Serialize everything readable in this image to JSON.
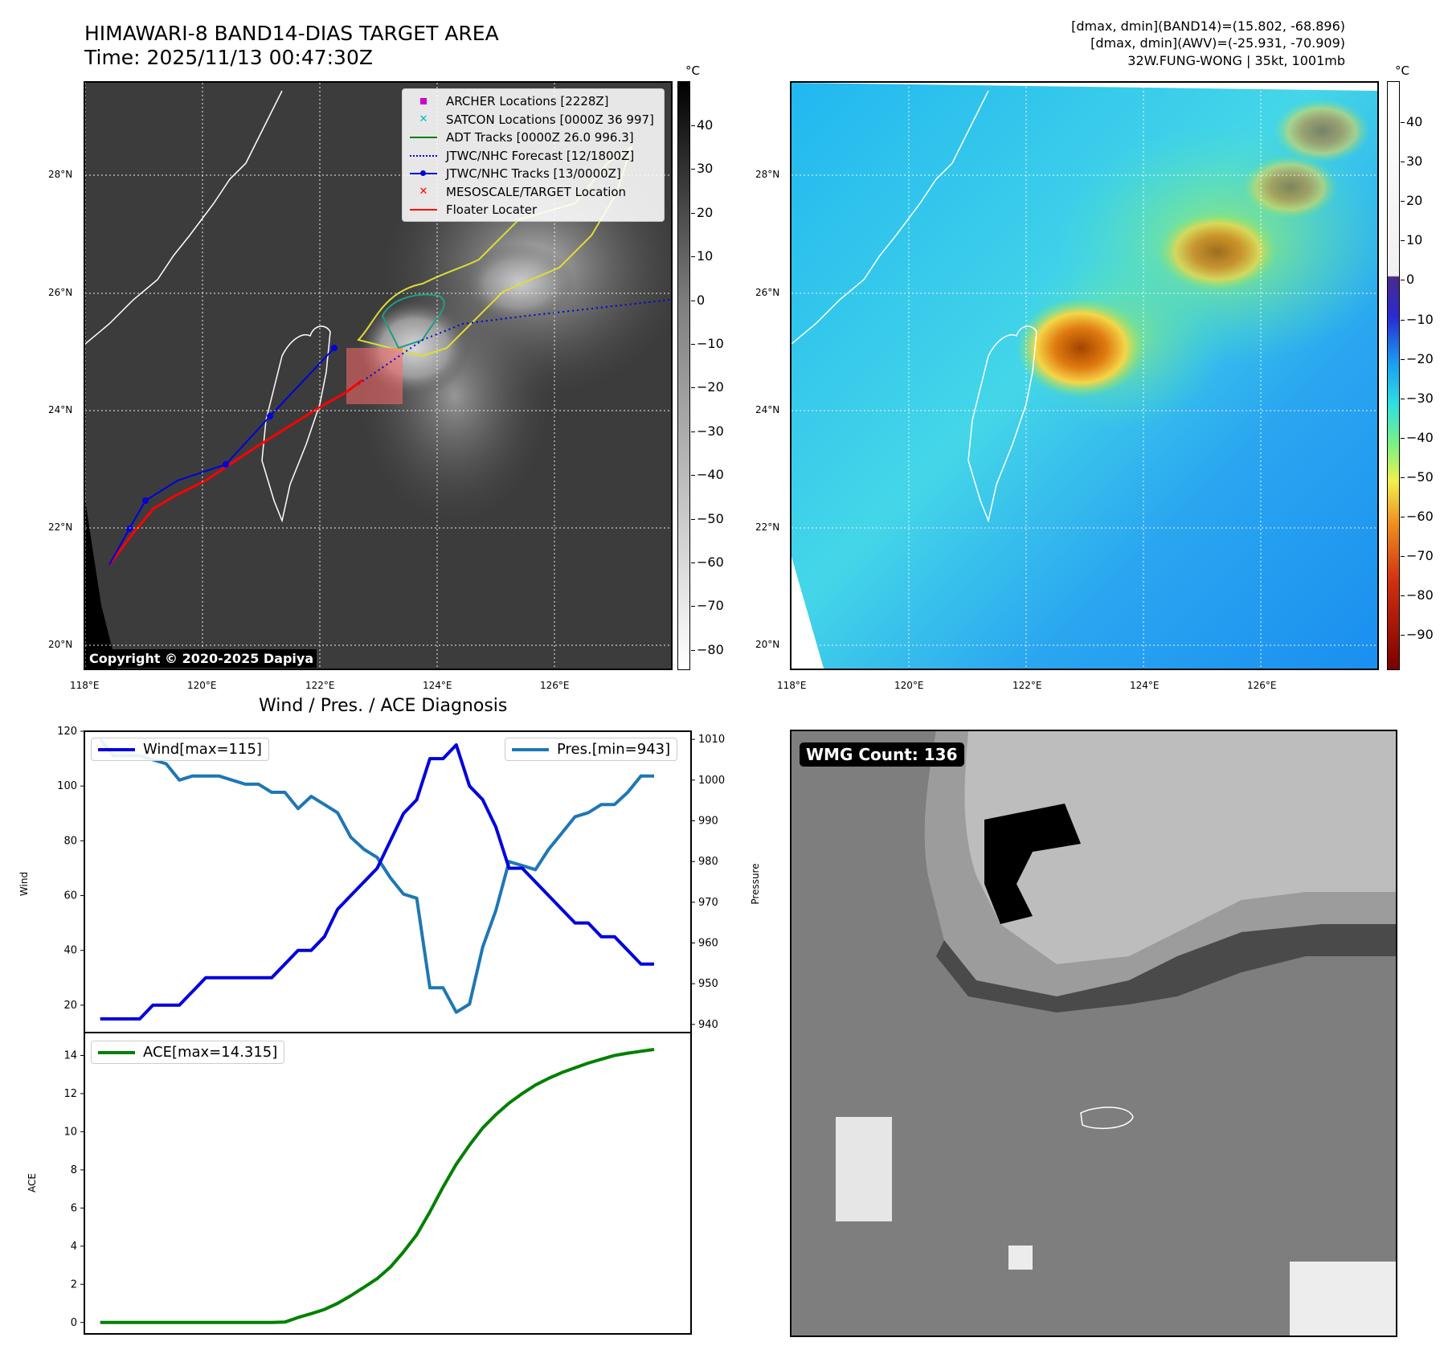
{
  "header": {
    "title_line1": "HIMAWARI-8 BAND14-DIAS TARGET AREA",
    "title_line2": "Time: 2025/11/13 00:47:30Z",
    "info_line1": "[dmax, dmin](BAND14)=(15.802, -68.896)",
    "info_line2": "[dmax, dmin](AWV)=(-25.931, -70.909)",
    "info_line3": "32W.FUNG-WONG | 35kt, 1001mb"
  },
  "map_axes": {
    "lat_labels": [
      "28°N",
      "26°N",
      "24°N",
      "22°N",
      "20°N"
    ],
    "lon_labels": [
      "118°E",
      "120°E",
      "122°E",
      "124°E",
      "126°E"
    ]
  },
  "colorbar_left": {
    "unit": "°C",
    "ticks": [
      "40",
      "30",
      "20",
      "10",
      "0",
      "−10",
      "−20",
      "−30",
      "−40",
      "−50",
      "−60",
      "−70",
      "−80"
    ]
  },
  "colorbar_right": {
    "unit": "°C",
    "ticks": [
      "40",
      "30",
      "20",
      "10",
      "0",
      "−10",
      "−20",
      "−30",
      "−40",
      "−50",
      "−60",
      "−70",
      "−80",
      "−90"
    ]
  },
  "legend": {
    "items": [
      {
        "label": "ARCHER Locations [2228Z]",
        "color": "#cc00cc",
        "symbol": "square"
      },
      {
        "label": "SATCON Locations [0000Z 36 997]",
        "color": "#00bbbb",
        "symbol": "x"
      },
      {
        "label": "ADT Tracks [0000Z 26.0 996.3]",
        "color": "#008000",
        "symbol": "line"
      },
      {
        "label": "JTWC/NHC Forecast [12/1800Z]",
        "color": "#0000dd",
        "symbol": "dotted"
      },
      {
        "label": "JTWC/NHC Tracks [13/0000Z]",
        "color": "#0000dd",
        "symbol": "line-dot"
      },
      {
        "label": "MESOSCALE/TARGET Location",
        "color": "#ff0000",
        "symbol": "x"
      },
      {
        "label": "Floater Locater",
        "color": "#ff0000",
        "symbol": "line"
      }
    ]
  },
  "copyright": "Copyright © 2020-2025 Dapiya",
  "wmg_label": "WMG Count: 136",
  "chart_data": [
    {
      "type": "line",
      "title": "Wind / Pres. / ACE Diagnosis",
      "ylabel": "Wind",
      "ylabel_right": "Pressure",
      "ylim": [
        10,
        120
      ],
      "ylim_right": [
        938,
        1012
      ],
      "yticks": [
        20,
        40,
        60,
        80,
        100,
        120
      ],
      "yticks_right": [
        940,
        950,
        960,
        970,
        980,
        990,
        1000,
        1010
      ],
      "x": [
        0,
        1,
        2,
        3,
        4,
        5,
        6,
        7,
        8,
        9,
        10,
        11,
        12,
        13,
        14,
        15,
        16,
        17,
        18,
        19,
        20,
        21,
        22,
        23,
        24,
        25,
        26,
        27,
        28,
        29,
        30,
        31,
        32,
        33,
        34,
        35,
        36,
        37,
        38,
        39,
        40,
        41,
        42,
        43,
        44
      ],
      "series": [
        {
          "name": "Wind[max=115]",
          "axis": "left",
          "color": "#0000dd",
          "values": [
            15,
            15,
            15,
            15,
            20,
            20,
            20,
            25,
            30,
            30,
            30,
            30,
            30,
            30,
            35,
            40,
            40,
            45,
            55,
            60,
            65,
            70,
            80,
            90,
            95,
            110,
            110,
            115,
            100,
            95,
            85,
            70,
            70,
            65,
            60,
            55,
            50,
            50,
            45,
            45,
            40,
            35,
            35,
            null,
            null
          ]
        },
        {
          "name": "Pres.[min=943]",
          "axis": "right",
          "color": "#1f77b4",
          "values": [
            1010,
            1006,
            1006,
            1006,
            1005,
            1004,
            1000,
            1001,
            1001,
            1001,
            1000,
            999,
            999,
            997,
            997,
            993,
            996,
            994,
            992,
            986,
            983,
            981,
            976,
            972,
            971,
            949,
            949,
            943,
            945,
            959,
            968,
            980,
            979,
            978,
            983,
            987,
            991,
            992,
            994,
            994,
            997,
            1001,
            1001,
            null,
            null
          ]
        }
      ]
    },
    {
      "type": "line",
      "ylabel": "ACE",
      "ylim": [
        -0.6,
        15.2
      ],
      "yticks": [
        0,
        2,
        4,
        6,
        8,
        10,
        12,
        14
      ],
      "x": [
        0,
        1,
        2,
        3,
        4,
        5,
        6,
        7,
        8,
        9,
        10,
        11,
        12,
        13,
        14,
        15,
        16,
        17,
        18,
        19,
        20,
        21,
        22,
        23,
        24,
        25,
        26,
        27,
        28,
        29,
        30,
        31,
        32,
        33,
        34,
        35,
        36,
        37,
        38,
        39,
        40,
        41,
        42,
        43,
        44
      ],
      "series": [
        {
          "name": "ACE[max=14.315]",
          "color": "#008000",
          "values": [
            0,
            0,
            0,
            0,
            0,
            0,
            0,
            0,
            0,
            0,
            0,
            0,
            0,
            0,
            0.02,
            0.26,
            0.46,
            0.68,
            1.0,
            1.4,
            1.85,
            2.3,
            2.9,
            3.7,
            4.6,
            5.8,
            7.1,
            8.3,
            9.3,
            10.2,
            10.9,
            11.5,
            12.0,
            12.45,
            12.8,
            13.1,
            13.35,
            13.6,
            13.8,
            14.0,
            14.12,
            14.22,
            14.315,
            null,
            null
          ]
        }
      ]
    }
  ]
}
